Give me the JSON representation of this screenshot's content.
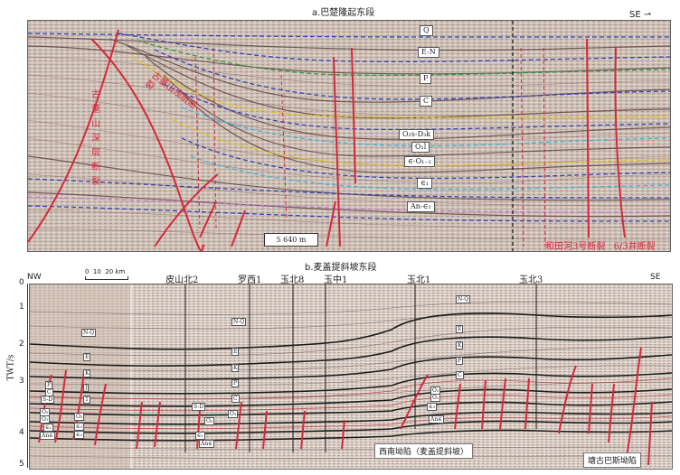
{
  "panel_a": {
    "title": "a.巴楚隆起东段",
    "orientation": "SE",
    "horizons": [
      "Q",
      "E-N",
      "P",
      "C",
      "O₂s-D₃k",
      "O₁l",
      "∈-O₁₋₂",
      "∈₁",
      "An-∈₁"
    ],
    "fault_label_vertical_1": "古董山浅层断裂",
    "fault_label_vertical_2": "古董山深层断裂",
    "fault_label_right": "和田河3号断裂",
    "fault_label_right_2": "6/3井断裂",
    "scale_bar": "5 640 m"
  },
  "panel_b": {
    "title": "b.麦盖提斜坡东段",
    "nw_label": "NW",
    "se_label": "SE",
    "scale_label": "0  10  20 km",
    "y_axis_label": "TWT/s",
    "y_ticks": [
      "0",
      "1",
      "2",
      "3",
      "4",
      "5"
    ],
    "wells": [
      "皮山北2",
      "罗西1",
      "玉北8",
      "玉中1",
      "玉北1",
      "玉北3"
    ],
    "left_labels": [
      "N-Q",
      "E",
      "K",
      "J",
      "T",
      "P",
      "C",
      "S-D",
      "O₃",
      "O₂",
      "O₁",
      "∈₃",
      "∈₂",
      "∈₁",
      "An∈"
    ],
    "mid_labels": [
      "N-Q",
      "E",
      "K",
      "P",
      "C",
      "S-D",
      "O₃",
      "O₂",
      "∈₁",
      "An∈"
    ],
    "right_labels": [
      "N-Q",
      "E",
      "K",
      "P",
      "C",
      "O₂",
      "O₁",
      "∈₃",
      "An∈"
    ],
    "region_left": "西南坳陷（麦盖提斜坡）",
    "region_right": "塘古巴斯坳陷"
  }
}
